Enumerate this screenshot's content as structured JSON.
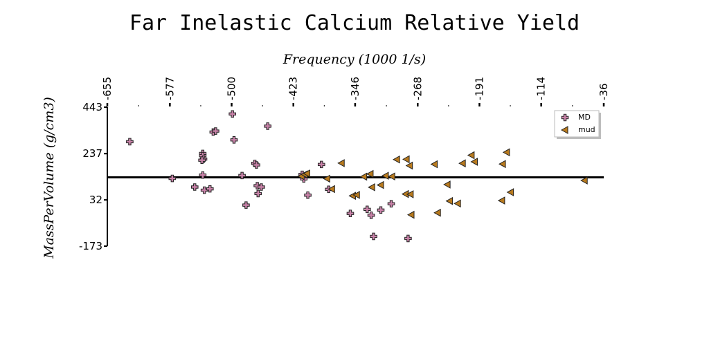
{
  "chart_data": {
    "type": "scatter",
    "title": "Far Inelastic Calcium Relative Yield",
    "xlabel": "Frequency (1000 1/s)",
    "ylabel": "MassPerVolume (g/cm3)",
    "x_axis_position": "top",
    "xlim": [
      -655,
      -36
    ],
    "ylim": [
      -173,
      443
    ],
    "x_ticks": [
      "-655",
      "-577",
      "-500",
      "-423",
      "-346",
      "-268",
      "-191",
      "-114",
      "-36"
    ],
    "y_ticks": [
      "443",
      "237",
      "32",
      "-173"
    ],
    "reference_line_y": 132,
    "grid": false,
    "legend_position": "top-right",
    "colors": {
      "MD": "#c882a8",
      "mud": "#b87a1e",
      "marker_edge": "#222222"
    },
    "series": [
      {
        "name": "MD",
        "marker": "plus",
        "points": [
          [
            -627,
            290
          ],
          [
            -574,
            127
          ],
          [
            -546,
            89
          ],
          [
            -536,
            238
          ],
          [
            -536,
            228
          ],
          [
            -535,
            213
          ],
          [
            -537,
            208
          ],
          [
            -536,
            142
          ],
          [
            -534,
            75
          ],
          [
            -527,
            81
          ],
          [
            -523,
            333
          ],
          [
            -520,
            337
          ],
          [
            -499,
            413
          ],
          [
            -497,
            298
          ],
          [
            -487,
            140
          ],
          [
            -482,
            9
          ],
          [
            -471,
            194
          ],
          [
            -469,
            187
          ],
          [
            -467,
            60
          ],
          [
            -468,
            95
          ],
          [
            -463,
            89
          ],
          [
            -455,
            359
          ],
          [
            -410,
            125
          ],
          [
            -412,
            145
          ],
          [
            -405,
            53
          ],
          [
            -388,
            189
          ],
          [
            -379,
            79
          ],
          [
            -352,
            -28
          ],
          [
            -331,
            -10
          ],
          [
            -326,
            -36
          ],
          [
            -323,
            -130
          ],
          [
            -314,
            -13
          ],
          [
            -301,
            15
          ],
          [
            -280,
            -139
          ]
        ]
      },
      {
        "name": "mud",
        "marker": "triangle-left",
        "points": [
          [
            -413,
            137
          ],
          [
            -409,
            145
          ],
          [
            -406,
            149
          ],
          [
            -381,
            126
          ],
          [
            -375,
            80
          ],
          [
            -363,
            195
          ],
          [
            -349,
            50
          ],
          [
            -344,
            54
          ],
          [
            -335,
            135
          ],
          [
            -327,
            147
          ],
          [
            -325,
            88
          ],
          [
            -314,
            98
          ],
          [
            -308,
            139
          ],
          [
            -300,
            136
          ],
          [
            -294,
            211
          ],
          [
            -282,
            212
          ],
          [
            -278,
            184
          ],
          [
            -283,
            58
          ],
          [
            -277,
            57
          ],
          [
            -276,
            -34
          ],
          [
            -247,
            190
          ],
          [
            -243,
            -25
          ],
          [
            -231,
            100
          ],
          [
            -228,
            27
          ],
          [
            -218,
            16
          ],
          [
            -212,
            194
          ],
          [
            -201,
            230
          ],
          [
            -197,
            201
          ],
          [
            -162,
            191
          ],
          [
            -157,
            243
          ],
          [
            -163,
            29
          ],
          [
            -152,
            66
          ],
          [
            -60,
            118
          ]
        ]
      }
    ]
  }
}
